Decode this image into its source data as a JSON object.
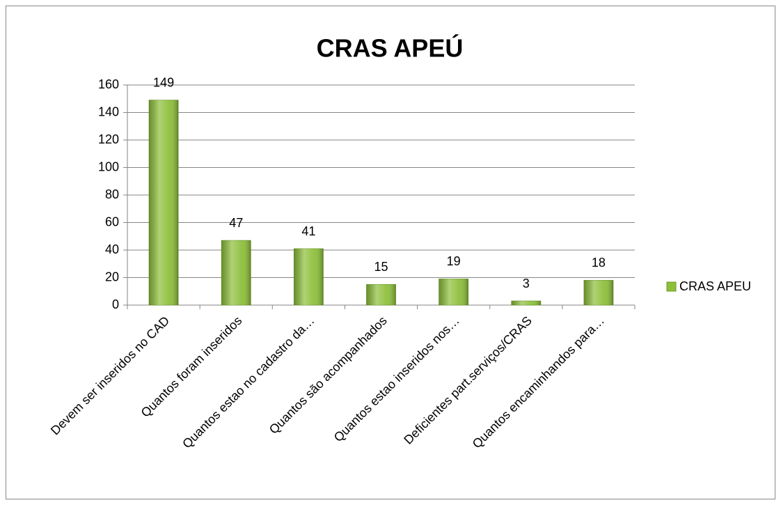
{
  "chart_data": {
    "type": "bar",
    "title": "CRAS APEÚ",
    "categories": [
      "Devem ser inseridos no CAD",
      "Quantos foram inseridos",
      "Quantos estao no cadastro da…",
      "Quantos são acompanhados",
      "Quantos estao inseridos nos…",
      "Deficientes part.serviços/CRAS",
      "Quantos encaminhandos para…"
    ],
    "series": [
      {
        "name": "CRAS APEU",
        "color": "#8dbf3a",
        "values": [
          149,
          47,
          41,
          15,
          19,
          3,
          18
        ]
      }
    ],
    "ylim": [
      0,
      160
    ],
    "yticks": [
      0,
      20,
      40,
      60,
      80,
      100,
      120,
      140,
      160
    ],
    "grid": true,
    "legend": "right"
  }
}
